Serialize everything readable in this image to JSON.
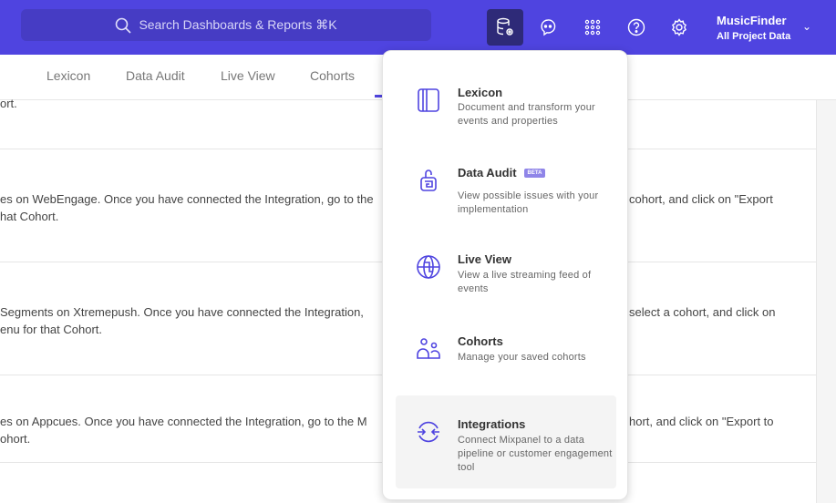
{
  "header": {
    "search_placeholder": "Search Dashboards & Reports ⌘K",
    "project_name": "MusicFinder",
    "project_scope": "All Project Data",
    "icons": [
      "data-management-icon",
      "chat-icon",
      "apps-grid-icon",
      "help-icon",
      "settings-icon"
    ],
    "accent": "#4f44e0"
  },
  "tabs": [
    {
      "label": "Lexicon"
    },
    {
      "label": "Data Audit"
    },
    {
      "label": "Live View"
    },
    {
      "label": "Cohorts"
    }
  ],
  "content": {
    "rows": [
      {
        "left": [
          "ort."
        ],
        "right": []
      },
      {
        "left": [
          "es on WebEngage. Once you have connected the Integration, go to the",
          "hat Cohort."
        ],
        "right": [
          "cohort, and click on \"Export"
        ]
      },
      {
        "left": [
          "Segments on Xtremepush. Once you have connected the Integration, ",
          "enu for that Cohort."
        ],
        "right": [
          "select a cohort, and click on"
        ]
      },
      {
        "left": [
          "es on Appcues. Once you have connected the Integration, go to the M",
          "ohort."
        ],
        "right": [
          "hort, and click on \"Export to"
        ]
      }
    ]
  },
  "menu": {
    "items": [
      {
        "title": "Lexicon",
        "desc": "Document and transform your events and properties",
        "icon": "book-icon"
      },
      {
        "title": "Data Audit",
        "badge": "BETA",
        "desc": "View possible issues with your implementation",
        "icon": "audit-lock-icon"
      },
      {
        "title": "Live View",
        "desc": "View a live streaming feed of events",
        "icon": "globe-icon"
      },
      {
        "title": "Cohorts",
        "desc": "Manage your saved cohorts",
        "icon": "users-icon"
      },
      {
        "title": "Integrations",
        "desc": "Connect Mixpanel to a data pipeline or customer engagement tool",
        "icon": "integrations-icon",
        "highlighted": true
      }
    ]
  }
}
